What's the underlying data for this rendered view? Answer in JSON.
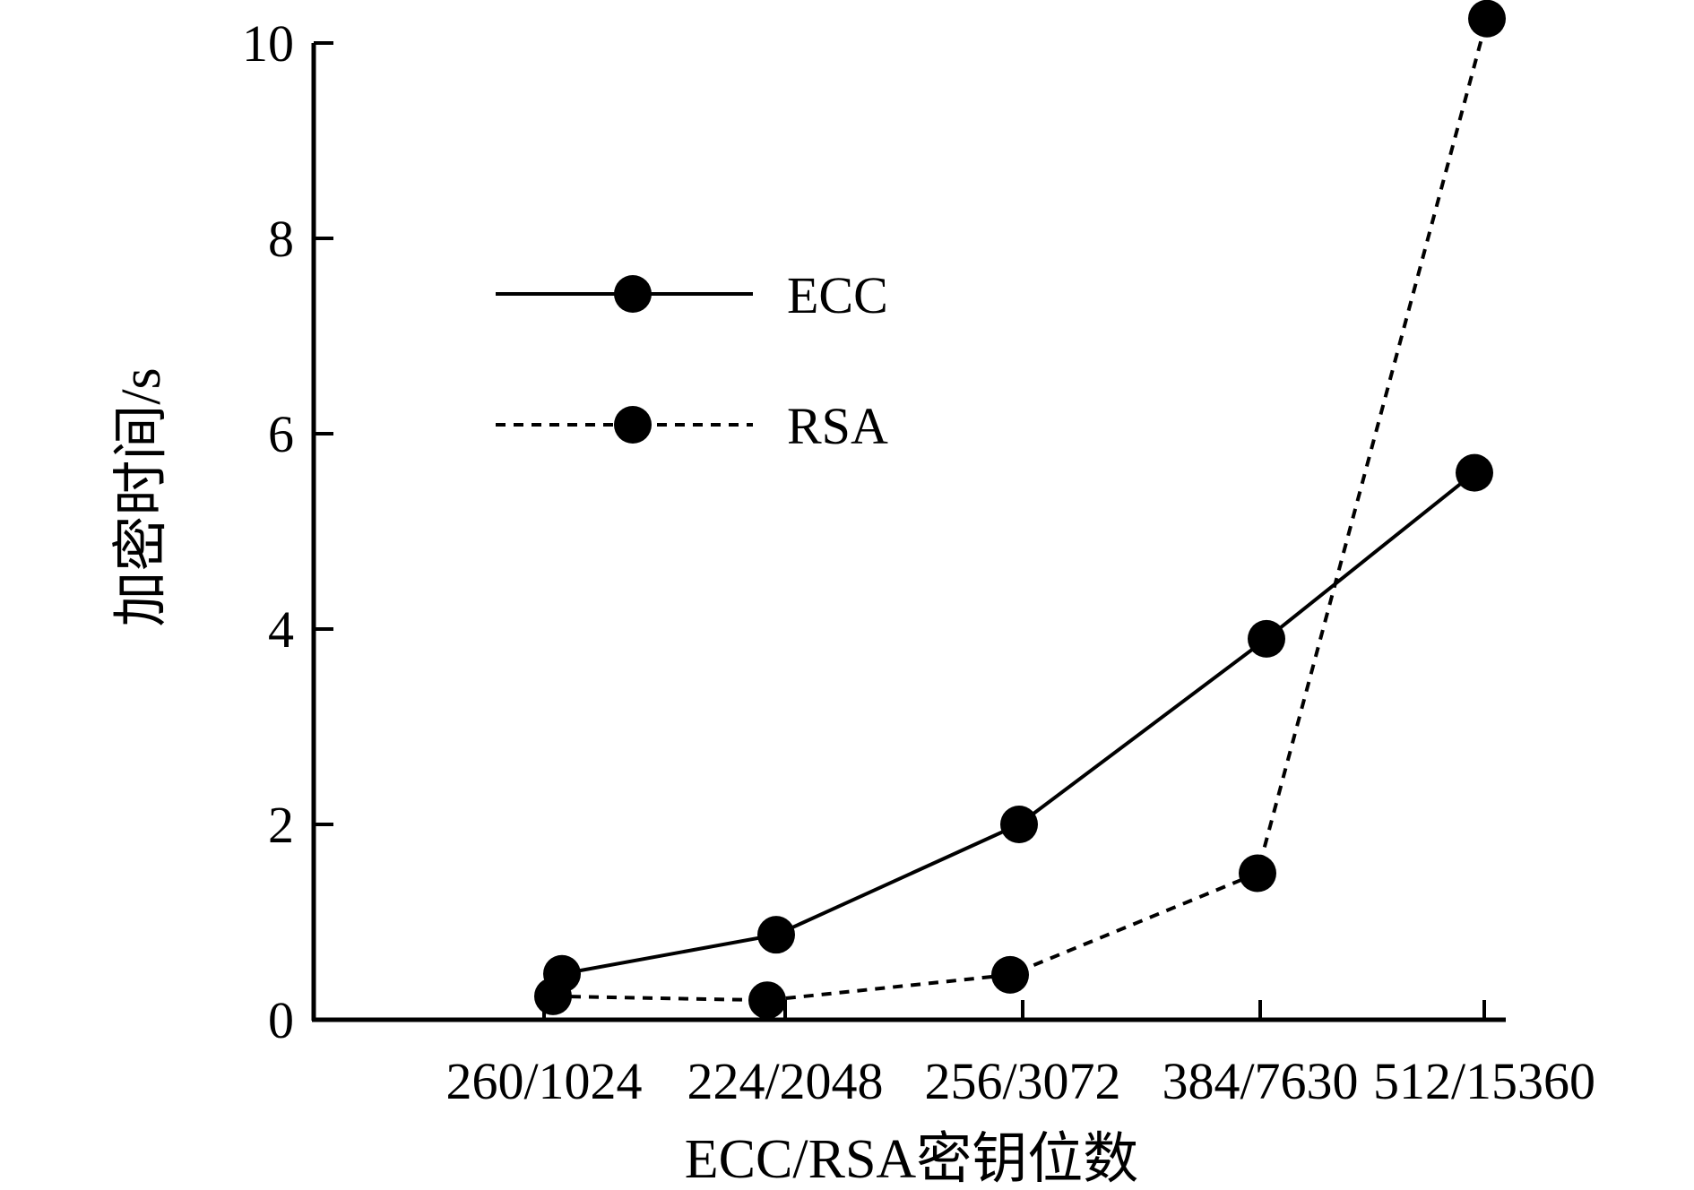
{
  "chart_data": {
    "type": "line",
    "title": "",
    "xlabel": "ECC/RSA密钥位数",
    "ylabel": "加密时间/s",
    "categories": [
      "260/1024",
      "224/2048",
      "256/3072",
      "384/7630",
      "512/15360"
    ],
    "ylim": [
      0,
      10
    ],
    "yticks": [
      "0",
      "2",
      "4",
      "6",
      "8",
      "10"
    ],
    "grid": false,
    "legend_position": "top-left",
    "series": [
      {
        "name": "ECC",
        "style": "solid",
        "marker": "filled-circle",
        "color": "#000000",
        "values": [
          0.47,
          0.87,
          2.0,
          3.9,
          5.6
        ]
      },
      {
        "name": "RSA",
        "style": "dashed",
        "marker": "filled-circle",
        "color": "#000000",
        "values": [
          0.24,
          0.2,
          0.46,
          1.5,
          10.25
        ]
      }
    ]
  }
}
